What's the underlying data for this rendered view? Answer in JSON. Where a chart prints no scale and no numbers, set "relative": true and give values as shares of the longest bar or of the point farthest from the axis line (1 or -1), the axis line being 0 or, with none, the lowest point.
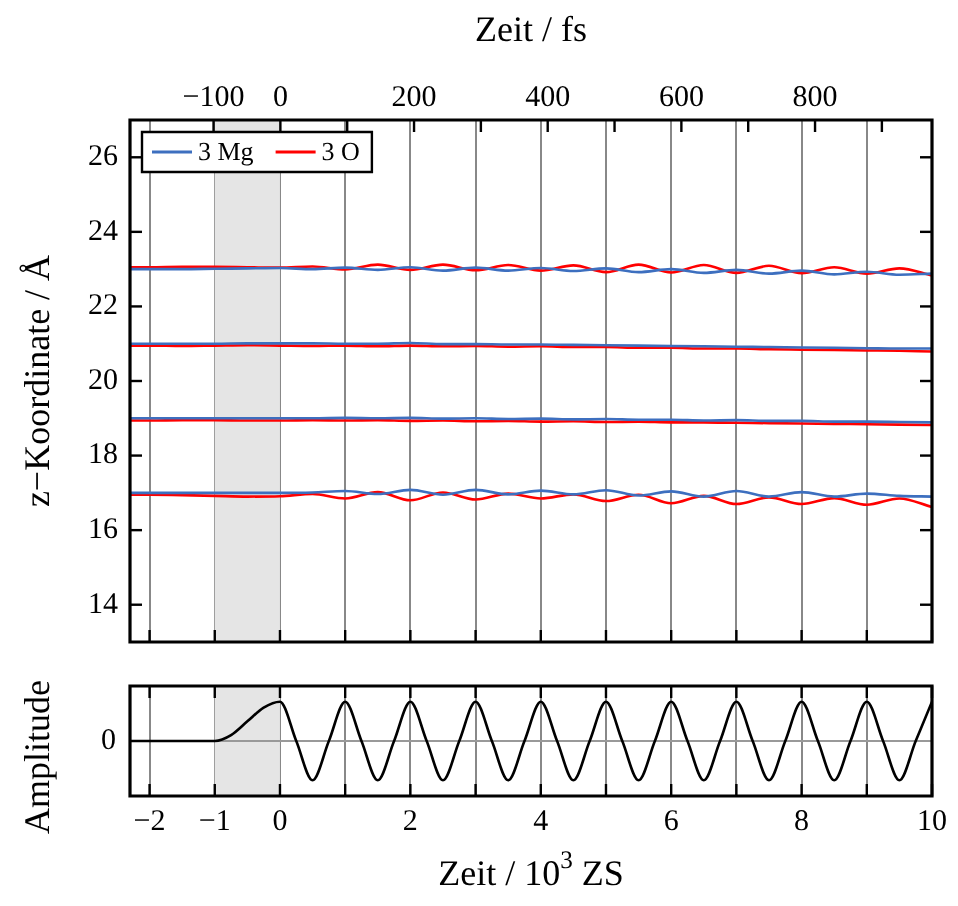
{
  "chart_data": [
    {
      "type": "line",
      "x2label": "Zeit / fs",
      "ylabel": "z−Koordinate / Å",
      "x": [
        -2.3,
        -2,
        -1.5,
        -1,
        -0.5,
        0,
        0.5,
        1,
        1.5,
        2,
        2.5,
        3,
        3.5,
        4,
        4.5,
        5,
        5.5,
        6,
        6.5,
        7,
        7.5,
        8,
        8.5,
        9,
        9.5,
        10
      ],
      "series": [
        {
          "name": "3 Mg",
          "color": "#3d6fbf",
          "values": [
            23.0,
            23.0,
            23.0,
            23.01,
            23.02,
            23.03,
            23.0,
            23.04,
            22.98,
            23.05,
            22.96,
            23.04,
            22.96,
            23.03,
            22.95,
            23.02,
            22.92,
            23.0,
            22.9,
            22.98,
            22.88,
            22.96,
            22.86,
            22.93,
            22.85,
            22.88
          ]
        },
        {
          "name": "3 O",
          "color": "#ff0000",
          "values": [
            23.05,
            23.05,
            23.06,
            23.06,
            23.05,
            23.04,
            23.07,
            22.99,
            23.12,
            22.98,
            23.12,
            22.97,
            23.11,
            22.96,
            23.1,
            22.92,
            23.12,
            22.91,
            23.11,
            22.9,
            23.09,
            22.89,
            23.05,
            22.88,
            23.02,
            22.83
          ]
        },
        {
          "color": "#3d6fbf",
          "values": [
            21.0,
            21.0,
            21.0,
            21.0,
            21.01,
            21.01,
            21.01,
            21.0,
            21.0,
            21.02,
            20.99,
            20.99,
            20.98,
            20.98,
            20.97,
            20.96,
            20.95,
            20.94,
            20.93,
            20.92,
            20.91,
            20.9,
            20.89,
            20.88,
            20.87,
            20.87
          ]
        },
        {
          "color": "#ff0000",
          "values": [
            20.95,
            20.95,
            20.94,
            20.95,
            20.96,
            20.95,
            20.94,
            20.95,
            20.93,
            20.95,
            20.93,
            20.94,
            20.92,
            20.93,
            20.91,
            20.91,
            20.89,
            20.89,
            20.87,
            20.87,
            20.85,
            20.84,
            20.83,
            20.82,
            20.81,
            20.79
          ]
        },
        {
          "color": "#3d6fbf",
          "values": [
            19.0,
            19.0,
            19.0,
            19.0,
            19.0,
            19.0,
            19.0,
            19.01,
            19.0,
            19.01,
            18.99,
            19.0,
            18.98,
            18.99,
            18.97,
            18.98,
            18.96,
            18.96,
            18.94,
            18.95,
            18.93,
            18.93,
            18.91,
            18.91,
            18.9,
            18.89
          ]
        },
        {
          "color": "#ff0000",
          "values": [
            18.94,
            18.94,
            18.95,
            18.95,
            18.94,
            18.94,
            18.95,
            18.94,
            18.95,
            18.93,
            18.94,
            18.92,
            18.93,
            18.91,
            18.92,
            18.9,
            18.91,
            18.89,
            18.89,
            18.88,
            18.87,
            18.86,
            18.85,
            18.84,
            18.83,
            18.82
          ]
        },
        {
          "color": "#3d6fbf",
          "values": [
            17.0,
            17.0,
            17.0,
            17.0,
            17.0,
            17.0,
            17.01,
            17.05,
            16.97,
            17.08,
            16.95,
            17.08,
            16.96,
            17.06,
            16.96,
            17.07,
            16.93,
            17.04,
            16.9,
            17.05,
            16.9,
            17.02,
            16.9,
            16.98,
            16.92,
            16.9
          ]
        },
        {
          "color": "#ff0000",
          "values": [
            16.95,
            16.95,
            16.94,
            16.92,
            16.9,
            16.91,
            16.97,
            16.85,
            17.02,
            16.8,
            17.01,
            16.82,
            16.98,
            16.85,
            16.96,
            16.78,
            16.95,
            16.72,
            16.92,
            16.7,
            16.88,
            16.7,
            16.86,
            16.68,
            16.85,
            16.62
          ]
        }
      ],
      "xlim": [
        -2.3,
        10
      ],
      "xticks": [
        -2,
        -1,
        0,
        1,
        2,
        3,
        4,
        5,
        6,
        7,
        8,
        9,
        10
      ],
      "ylim": [
        13,
        27
      ],
      "yticks": [
        14,
        16,
        18,
        20,
        22,
        24,
        26
      ],
      "x2lim": [
        -225,
        975
      ],
      "x2ticks": [
        {
          "value": -100,
          "label": "−100"
        },
        0,
        {
          "value": 100,
          "label": null
        },
        200,
        {
          "value": 300,
          "label": null
        },
        400,
        {
          "value": 500,
          "label": null
        },
        600,
        {
          "value": 700,
          "label": null
        },
        800,
        {
          "value": 900,
          "label": null
        }
      ],
      "bands": [
        {
          "axis": "x",
          "from": -1,
          "to": 0,
          "color": "#e5e5e5"
        }
      ],
      "grid": "x",
      "legend": "top left",
      "tick_labels": "y"
    },
    {
      "type": "line",
      "xlabel": "Zeit / 10$^{3}$ ZS",
      "ylabel": "Amplitude",
      "relative": true,
      "x": [
        -2.3,
        -1,
        -0.75,
        -0.5,
        -0.25,
        0,
        0.25,
        0.5,
        0.75,
        1,
        1.25,
        1.5,
        1.75,
        2,
        2.25,
        2.5,
        2.75,
        3,
        3.25,
        3.5,
        3.75,
        4,
        4.25,
        4.5,
        4.75,
        5,
        5.25,
        5.5,
        5.75,
        6,
        6.25,
        6.5,
        6.75,
        7,
        7.25,
        7.5,
        7.75,
        8,
        8.25,
        8.5,
        8.75,
        9,
        9.25,
        9.5,
        9.75,
        10
      ],
      "series": [
        {
          "color": "#000000",
          "values": [
            0,
            0,
            0.15,
            0.5,
            0.85,
            1,
            0,
            -1,
            0,
            1,
            0,
            -1,
            0,
            1,
            0,
            -1,
            0,
            1,
            0,
            -1,
            0,
            1,
            0,
            -1,
            0,
            1,
            0,
            -1,
            0,
            1,
            0,
            -1,
            0,
            1,
            0,
            -1,
            0,
            1,
            0,
            -1,
            0,
            1,
            0,
            -1,
            0,
            1
          ]
        }
      ],
      "xlim": [
        -2.3,
        10
      ],
      "xticks": [
        {
          "value": -2,
          "label": "−2"
        },
        {
          "value": -1,
          "label": "−1"
        },
        0,
        {
          "value": 1,
          "label": null
        },
        2,
        {
          "value": 3,
          "label": null
        },
        4,
        {
          "value": 5,
          "label": null
        },
        6,
        {
          "value": 7,
          "label": null
        },
        8,
        {
          "value": 9,
          "label": null
        },
        10
      ],
      "ref_lines": [
        {
          "axis": "y",
          "value": 0,
          "label": "0",
          "color": "#999999"
        }
      ],
      "bands": [
        {
          "axis": "x",
          "from": -1,
          "to": 0,
          "color": "#e5e5e5"
        }
      ],
      "grid": "x"
    }
  ]
}
